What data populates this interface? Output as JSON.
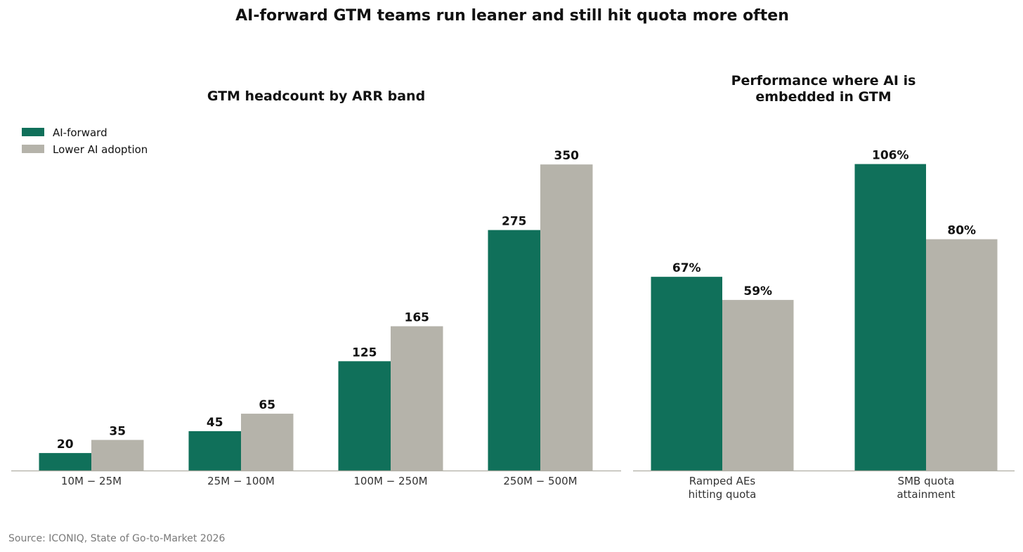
{
  "title": "AI-forward GTM teams run leaner and still hit quota more often",
  "source": "Source: ICONIQ, State of Go-to-Market 2026",
  "colors": {
    "ai_forward": "#10705A",
    "lower_ai": "#B5B3AA",
    "axis": "#B0AEA4"
  },
  "legend": [
    {
      "label": "AI-forward",
      "color": "#10705A"
    },
    {
      "label": "Lower AI adoption",
      "color": "#B5B3AA"
    }
  ],
  "chart_data": [
    {
      "type": "bar",
      "title": "GTM headcount by ARR band",
      "categories": [
        "$10M–$25M",
        "$25M–$100M",
        "$100M–$250M",
        "$250M–$500M"
      ],
      "category_display": [
        "10M − 25M",
        "25M − 100M",
        "100M − 250M",
        "250M − 500M"
      ],
      "series": [
        {
          "name": "AI-forward",
          "values": [
            20,
            45,
            125,
            275
          ]
        },
        {
          "name": "Lower AI adoption",
          "values": [
            35,
            65,
            165,
            350
          ]
        }
      ],
      "value_labels": [
        [
          "20",
          "45",
          "125",
          "275"
        ],
        [
          "35",
          "65",
          "165",
          "350"
        ]
      ],
      "ylim": [
        0,
        367
      ],
      "legend_position": "top-left",
      "grid": false
    },
    {
      "type": "bar",
      "title": "Performance where AI is embedded in GTM",
      "title_lines": [
        "Performance where AI is",
        "embedded in GTM"
      ],
      "categories": [
        "Ramped AEs hitting quota",
        "SMB quota attainment"
      ],
      "category_lines": [
        [
          "Ramped AEs",
          "hitting quota"
        ],
        [
          "SMB quota",
          "attainment"
        ]
      ],
      "series": [
        {
          "name": "AI-forward",
          "values": [
            67,
            106
          ]
        },
        {
          "name": "Lower AI adoption",
          "values": [
            59,
            80
          ]
        }
      ],
      "value_labels": [
        [
          "67%",
          "106%"
        ],
        [
          "59%",
          "80%"
        ]
      ],
      "ylim": [
        0,
        111
      ],
      "grid": false
    }
  ]
}
